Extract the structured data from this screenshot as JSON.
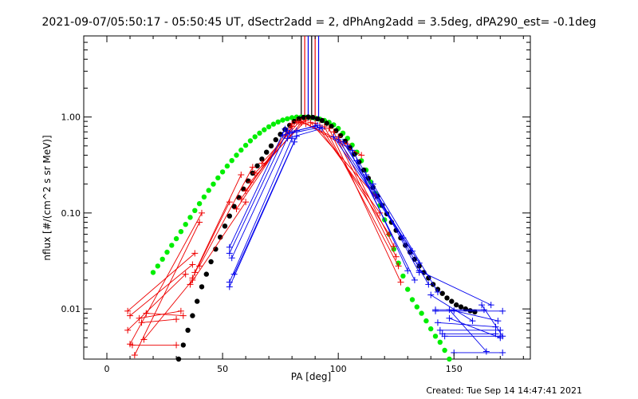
{
  "chart_data": {
    "type": "scatter",
    "title": "2021-09-07/05:50:17 - 05:50:45 UT, dSectr2add = 2, dPhAng2add = 3.5deg, dPA290_est= -0.1deg",
    "xlabel": "PA [deg]",
    "ylabel": "nflux [#/(cm^2 s sr MeV)]",
    "footer": "Created: Tue Sep 14 14:47:41 2021",
    "xlim": [
      -10,
      183
    ],
    "ylim": [
      0.003,
      7.0
    ],
    "yscale": "log",
    "grid": false,
    "legend": "none",
    "x_ticks": [
      0,
      50,
      100,
      150
    ],
    "x_tick_labels": [
      "0",
      "50",
      "100",
      "150"
    ],
    "y_ticks": [
      0.01,
      0.1,
      1.0
    ],
    "y_tick_labels": [
      "0.01",
      "0.10",
      "1.00"
    ],
    "colors": {
      "green": "#00ee00",
      "black": "#000000",
      "red": "#ee0000",
      "blue": "#0000ee"
    },
    "series": [
      {
        "color": "green",
        "marker": "circle",
        "x": [
          20,
          22,
          24,
          26,
          28,
          30,
          32,
          34,
          36,
          38,
          40,
          42,
          44,
          46,
          48,
          50,
          52,
          54,
          56,
          58,
          60,
          62,
          64,
          66,
          68,
          70,
          72,
          74,
          76,
          78,
          80,
          82,
          84,
          86,
          88,
          90,
          92,
          94,
          96,
          98,
          100,
          102,
          104,
          106,
          108,
          110,
          112,
          114,
          116,
          118,
          120,
          122,
          124,
          126,
          128,
          130,
          132,
          134,
          136,
          138,
          140,
          142,
          144,
          146,
          148
        ],
        "y": [
          0.024,
          0.028,
          0.033,
          0.039,
          0.046,
          0.054,
          0.064,
          0.076,
          0.09,
          0.106,
          0.125,
          0.147,
          0.172,
          0.2,
          0.232,
          0.268,
          0.308,
          0.352,
          0.4,
          0.452,
          0.507,
          0.564,
          0.622,
          0.68,
          0.737,
          0.791,
          0.842,
          0.888,
          0.928,
          0.96,
          0.984,
          0.998,
          1.0,
          0.995,
          0.985,
          0.97,
          0.95,
          0.92,
          0.88,
          0.83,
          0.76,
          0.68,
          0.6,
          0.51,
          0.43,
          0.35,
          0.28,
          0.21,
          0.16,
          0.12,
          0.085,
          0.06,
          0.042,
          0.03,
          0.022,
          0.016,
          0.0125,
          0.0105,
          0.009,
          0.0075,
          0.0062,
          0.0052,
          0.0045,
          0.0037,
          0.003
        ]
      },
      {
        "color": "black",
        "marker": "circle",
        "x": [
          31,
          33,
          35,
          37,
          39,
          41,
          43,
          45,
          47,
          49,
          51,
          53,
          55,
          57,
          59,
          61,
          63,
          65,
          67,
          69,
          71,
          73,
          75,
          77,
          79,
          81,
          83,
          85,
          87,
          89,
          91,
          93,
          95,
          97,
          99,
          101,
          103,
          105,
          107,
          109,
          111,
          113,
          115,
          117,
          119,
          121,
          123,
          125,
          127,
          129,
          131,
          133,
          135,
          137,
          139,
          141,
          143,
          145,
          147,
          149,
          151,
          153,
          155,
          157,
          159
        ],
        "y": [
          0.003,
          0.0042,
          0.006,
          0.0085,
          0.012,
          0.017,
          0.023,
          0.031,
          0.042,
          0.056,
          0.073,
          0.093,
          0.117,
          0.145,
          0.178,
          0.216,
          0.26,
          0.31,
          0.365,
          0.43,
          0.5,
          0.58,
          0.66,
          0.74,
          0.82,
          0.9,
          0.96,
          0.99,
          1.0,
          0.99,
          0.96,
          0.92,
          0.86,
          0.8,
          0.72,
          0.64,
          0.56,
          0.48,
          0.41,
          0.34,
          0.28,
          0.23,
          0.185,
          0.15,
          0.12,
          0.098,
          0.08,
          0.066,
          0.055,
          0.046,
          0.039,
          0.033,
          0.028,
          0.024,
          0.021,
          0.018,
          0.016,
          0.0145,
          0.013,
          0.012,
          0.011,
          0.0105,
          0.01,
          0.0096,
          0.0093
        ]
      },
      {
        "color": "red",
        "marker": "plus",
        "lines": [
          [
            [
              9,
              0.0095
            ],
            [
              38,
              0.038
            ]
          ],
          [
            [
              10,
              0.0085
            ],
            [
              37,
              0.029
            ]
          ],
          [
            [
              9,
              0.006
            ],
            [
              34,
              0.023
            ]
          ],
          [
            [
              10,
              0.0043
            ],
            [
              41,
              0.1
            ]
          ],
          [
            [
              12,
              0.0033
            ],
            [
              40,
              0.08
            ]
          ],
          [
            [
              16,
              0.0048
            ],
            [
              37,
              0.02
            ]
          ],
          [
            [
              14,
              0.008
            ],
            [
              32,
              0.0095
            ]
          ],
          [
            [
              17,
              0.009
            ],
            [
              33,
              0.0085
            ]
          ],
          [
            [
              15,
              0.0072
            ],
            [
              30,
              0.0078
            ]
          ],
          [
            [
              11,
              0.0042
            ],
            [
              30,
              0.0042
            ]
          ],
          [
            [
              37,
              0.021
            ],
            [
              53,
              0.13
            ]
          ],
          [
            [
              36,
              0.018
            ],
            [
              60,
              0.13
            ]
          ],
          [
            [
              38,
              0.024
            ],
            [
              58,
              0.25
            ]
          ],
          [
            [
              40,
              0.028
            ],
            [
              63,
              0.3
            ]
          ],
          [
            [
              56,
              0.11
            ],
            [
              80,
              0.8
            ]
          ],
          [
            [
              58,
              0.14
            ],
            [
              80,
              0.85
            ]
          ],
          [
            [
              60,
              0.17
            ],
            [
              82,
              0.9
            ]
          ],
          [
            [
              62,
              0.21
            ],
            [
              84,
              0.87
            ]
          ],
          [
            [
              64,
              0.26
            ],
            [
              86,
              0.92
            ]
          ],
          [
            [
              67,
              0.33
            ],
            [
              83,
              0.88
            ]
          ],
          [
            [
              84,
              0.9
            ],
            [
              104,
              0.52
            ]
          ],
          [
            [
              86,
              0.85
            ],
            [
              110,
              0.4
            ]
          ],
          [
            [
              88,
              0.88
            ],
            [
              116,
              0.15
            ]
          ],
          [
            [
              90,
              0.86
            ],
            [
              118,
              0.1
            ]
          ],
          [
            [
              92,
              0.82
            ],
            [
              122,
              0.06
            ]
          ],
          [
            [
              94,
              0.79
            ],
            [
              126,
              0.028
            ]
          ],
          [
            [
              96,
              0.76
            ],
            [
              127,
              0.019
            ]
          ],
          [
            [
              98,
              0.7
            ],
            [
              125,
              0.035
            ]
          ],
          [
            [
              100,
              0.62
            ],
            [
              124,
              0.045
            ]
          ]
        ]
      },
      {
        "color": "blue",
        "marker": "plus",
        "lines": [
          [
            [
              53,
              0.044
            ],
            [
              77,
              0.75
            ]
          ],
          [
            [
              53,
              0.038
            ],
            [
              78,
              0.72
            ]
          ],
          [
            [
              54,
              0.034
            ],
            [
              79,
              0.68
            ]
          ],
          [
            [
              53,
              0.019
            ],
            [
              80,
              0.6
            ]
          ],
          [
            [
              53,
              0.017
            ],
            [
              81,
              0.55
            ]
          ],
          [
            [
              55,
              0.023
            ],
            [
              82,
              0.63
            ]
          ],
          [
            [
              76,
              0.65
            ],
            [
              92,
              0.78
            ]
          ],
          [
            [
              78,
              0.6
            ],
            [
              93,
              0.76
            ]
          ],
          [
            [
              80,
              0.7
            ],
            [
              91,
              0.82
            ]
          ],
          [
            [
              82,
              0.72
            ],
            [
              90,
              0.8
            ]
          ],
          [
            [
              98,
              0.62
            ],
            [
              128,
              0.055
            ]
          ],
          [
            [
              100,
              0.58
            ],
            [
              132,
              0.04
            ]
          ],
          [
            [
              102,
              0.55
            ],
            [
              135,
              0.03
            ]
          ],
          [
            [
              104,
              0.5
            ],
            [
              133,
              0.02
            ]
          ],
          [
            [
              106,
              0.45
            ],
            [
              139,
              0.018
            ]
          ],
          [
            [
              108,
              0.35
            ],
            [
              130,
              0.025
            ]
          ],
          [
            [
              112,
              0.25
            ],
            [
              135,
              0.024
            ]
          ],
          [
            [
              115,
              0.2
            ],
            [
              143,
              0.015
            ]
          ],
          [
            [
              142,
              0.0098
            ],
            [
              163,
              0.0098
            ]
          ],
          [
            [
              142,
              0.0095
            ],
            [
              171,
              0.0095
            ]
          ],
          [
            [
              143,
              0.0072
            ],
            [
              168,
              0.0065
            ]
          ],
          [
            [
              144,
              0.006
            ],
            [
              170,
              0.006
            ]
          ],
          [
            [
              145,
              0.0055
            ],
            [
              168,
              0.0055
            ]
          ],
          [
            [
              146,
              0.0052
            ],
            [
              170,
              0.0052
            ]
          ],
          [
            [
              148,
              0.0098
            ],
            [
              164,
              0.0036
            ]
          ],
          [
            [
              150,
              0.0096
            ],
            [
              169,
              0.0075
            ]
          ],
          [
            [
              148,
              0.008
            ],
            [
              170,
              0.005
            ]
          ],
          [
            [
              150,
              0.0035
            ],
            [
              171,
              0.0035
            ]
          ],
          [
            [
              162,
              0.011
            ],
            [
              171,
              0.0052
            ]
          ],
          [
            [
              140,
              0.014
            ],
            [
              158,
              0.0075
            ]
          ],
          [
            [
              135,
              0.025
            ],
            [
              166,
              0.011
            ]
          ]
        ]
      }
    ],
    "vertical_lines": [
      {
        "x": 84,
        "color": "black"
      },
      {
        "x": 85.5,
        "color": "red"
      },
      {
        "x": 87,
        "color": "blue"
      },
      {
        "x": 88.5,
        "color": "black"
      },
      {
        "x": 90,
        "color": "red"
      },
      {
        "x": 91.5,
        "color": "blue"
      }
    ]
  }
}
